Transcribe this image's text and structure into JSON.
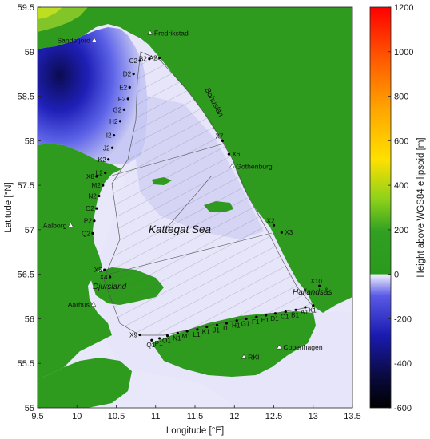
{
  "map": {
    "xlabel": "Longitude [°E]",
    "ylabel": "Latitude [°N]",
    "x_ticks": [
      "9.5",
      "10",
      "10.5",
      "11",
      "11.5",
      "12",
      "12.5",
      "13",
      "13.5"
    ],
    "y_ticks": [
      "59.5",
      "59",
      "58.5",
      "58",
      "57.5",
      "57",
      "56.5",
      "56",
      "55.5",
      "55"
    ],
    "lon_range": [
      9.5,
      13.5
    ],
    "lat_range": [
      55,
      59.5
    ],
    "colorbar": {
      "label": "Height above WGS84 ellipsoid [m]",
      "ticks": [
        "1200",
        "1000",
        "800",
        "600",
        "400",
        "200",
        "0",
        "-200",
        "-400",
        "-600"
      ],
      "range": [
        -600,
        1200
      ]
    },
    "regions": {
      "kattegat": "Kattegat Sea",
      "djursland": "Djursland",
      "hallandsas": "Hallandsås",
      "bohuslan": "Bohuslän"
    },
    "cities": [
      {
        "label": "Sandefjord",
        "lon": 10.22,
        "lat": 59.13
      },
      {
        "label": "Fredrikstad",
        "lon": 10.93,
        "lat": 59.21
      },
      {
        "label": "Gothenburg",
        "lon": 11.97,
        "lat": 57.71
      },
      {
        "label": "Aalborg",
        "lon": 9.92,
        "lat": 57.05
      },
      {
        "label": "Aarhus",
        "lon": 10.21,
        "lat": 56.16
      },
      {
        "label": "Copenhagen",
        "lon": 12.57,
        "lat": 55.68
      },
      {
        "label": "RKI",
        "lon": 12.12,
        "lat": 55.57
      }
    ],
    "points": [
      {
        "label": "A2",
        "lon": 11.05,
        "lat": 58.93
      },
      {
        "label": "B2",
        "lon": 10.92,
        "lat": 58.92
      },
      {
        "label": "C2",
        "lon": 10.8,
        "lat": 58.9
      },
      {
        "label": "D2",
        "lon": 10.72,
        "lat": 58.75
      },
      {
        "label": "E2",
        "lon": 10.67,
        "lat": 58.6
      },
      {
        "label": "F2",
        "lon": 10.65,
        "lat": 58.47
      },
      {
        "label": "G2",
        "lon": 10.6,
        "lat": 58.35
      },
      {
        "label": "H2",
        "lon": 10.55,
        "lat": 58.22
      },
      {
        "label": "I2",
        "lon": 10.47,
        "lat": 58.06
      },
      {
        "label": "J2",
        "lon": 10.45,
        "lat": 57.92
      },
      {
        "label": "K2",
        "lon": 10.4,
        "lat": 57.79
      },
      {
        "label": "L2",
        "lon": 10.36,
        "lat": 57.64
      },
      {
        "label": "M2",
        "lon": 10.33,
        "lat": 57.5
      },
      {
        "label": "N2",
        "lon": 10.28,
        "lat": 57.38
      },
      {
        "label": "O2",
        "lon": 10.25,
        "lat": 57.24
      },
      {
        "label": "P2",
        "lon": 10.22,
        "lat": 57.1
      },
      {
        "label": "Q2",
        "lon": 10.2,
        "lat": 56.96
      },
      {
        "label": "X1",
        "lon": 13.0,
        "lat": 56.15
      },
      {
        "label": "A1",
        "lon": 12.9,
        "lat": 56.13
      },
      {
        "label": "B1",
        "lon": 12.78,
        "lat": 56.1
      },
      {
        "label": "C1",
        "lon": 12.65,
        "lat": 56.08
      },
      {
        "label": "D1",
        "lon": 12.52,
        "lat": 56.06
      },
      {
        "label": "E1",
        "lon": 12.4,
        "lat": 56.04
      },
      {
        "label": "F1",
        "lon": 12.28,
        "lat": 56.02
      },
      {
        "label": "G1",
        "lon": 12.15,
        "lat": 56.0
      },
      {
        "label": "H1",
        "lon": 12.03,
        "lat": 55.98
      },
      {
        "label": "I1",
        "lon": 11.9,
        "lat": 55.95
      },
      {
        "label": "J1",
        "lon": 11.78,
        "lat": 55.93
      },
      {
        "label": "K1",
        "lon": 11.65,
        "lat": 55.91
      },
      {
        "label": "L1",
        "lon": 11.53,
        "lat": 55.88
      },
      {
        "label": "M1",
        "lon": 11.4,
        "lat": 55.86
      },
      {
        "label": "N1",
        "lon": 11.28,
        "lat": 55.84
      },
      {
        "label": "O1",
        "lon": 11.15,
        "lat": 55.81
      },
      {
        "label": "P1",
        "lon": 11.05,
        "lat": 55.78
      },
      {
        "label": "Q1",
        "lon": 10.95,
        "lat": 55.76
      },
      {
        "label": "X2",
        "lon": 12.5,
        "lat": 57.05
      },
      {
        "label": "X3",
        "lon": 12.6,
        "lat": 56.97
      },
      {
        "label": "X4",
        "lon": 10.42,
        "lat": 56.47
      },
      {
        "label": "X5",
        "lon": 10.35,
        "lat": 56.55
      },
      {
        "label": "X6",
        "lon": 11.93,
        "lat": 57.85
      },
      {
        "label": "X7",
        "lon": 11.85,
        "lat": 58.0
      },
      {
        "label": "X8",
        "lon": 10.25,
        "lat": 57.6
      },
      {
        "label": "X9",
        "lon": 10.8,
        "lat": 55.82
      },
      {
        "label": "X10",
        "lon": 13.08,
        "lat": 56.37
      }
    ]
  },
  "colors": {
    "land": "#2f9a1e",
    "sea_shallow": "#eceaf9",
    "sea_deep": "#101060",
    "highland": "#8fcc2a"
  }
}
